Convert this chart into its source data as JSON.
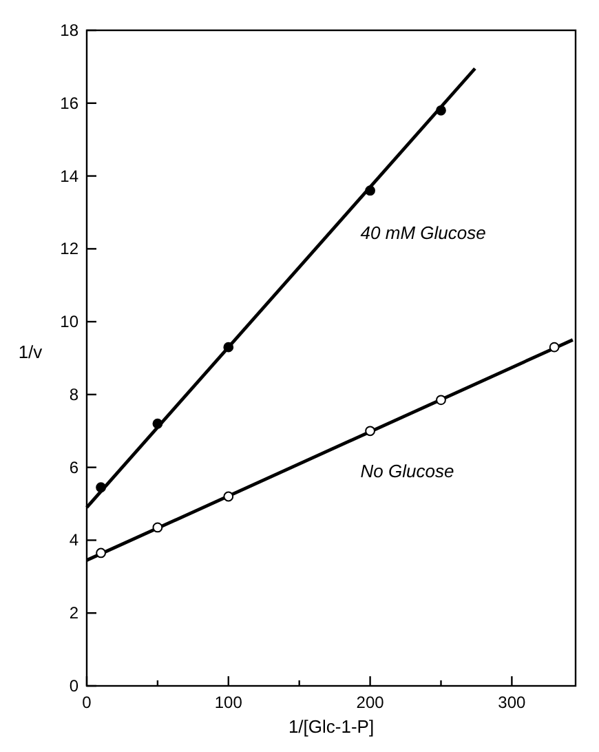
{
  "chart_data": {
    "type": "scatter",
    "xlabel": "1/[Glc-1-P]",
    "ylabel": "1/v",
    "xlim": [
      0,
      345
    ],
    "ylim": [
      0,
      18
    ],
    "xticks": [
      0,
      {
        "value": 50,
        "label": null
      },
      100,
      {
        "value": 150,
        "label": null
      },
      200,
      {
        "value": 250,
        "label": null
      },
      300
    ],
    "yticks": [
      0,
      2,
      4,
      6,
      8,
      10,
      12,
      14,
      16,
      18
    ],
    "grid": false,
    "series": [
      {
        "type": "line",
        "name": "40 mM Glucose",
        "color": "#000000",
        "marker": "none",
        "x": [
          0,
          274
        ],
        "values": [
          4.9,
          16.95
        ]
      },
      {
        "type": "line",
        "name": "No Glucose",
        "color": "#000000",
        "marker": "none",
        "x": [
          0,
          343
        ],
        "values": [
          3.45,
          9.5
        ]
      },
      {
        "type": "scatter",
        "color": "#000000",
        "marker": "circle",
        "x": [
          10,
          50,
          100,
          200,
          250
        ],
        "values": [
          5.45,
          7.2,
          9.3,
          13.6,
          15.8
        ]
      },
      {
        "type": "scatter",
        "color": "#ffffff",
        "marker": "circle",
        "x": [
          10,
          50,
          100,
          200,
          250,
          330
        ],
        "values": [
          3.65,
          4.35,
          5.2,
          7.0,
          7.85,
          9.3
        ]
      }
    ]
  }
}
